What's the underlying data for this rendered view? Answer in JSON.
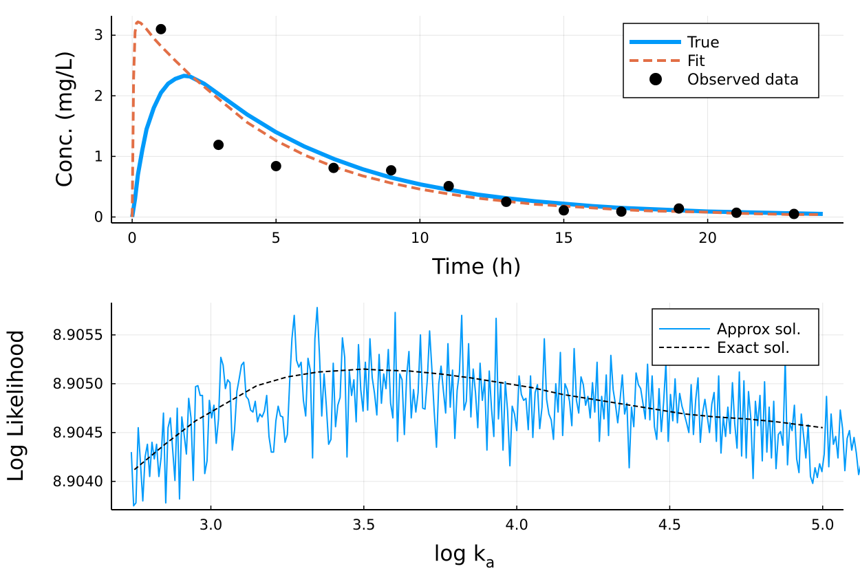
{
  "chart_data": [
    {
      "type": "line",
      "xlabel": "Time (h)",
      "ylabel": "Conc. (mg/L)",
      "xlim": [
        -0.72,
        24.72
      ],
      "ylim": [
        -0.097,
        3.32
      ],
      "xticks": [
        0,
        5,
        10,
        15,
        20
      ],
      "xtick_labels": [
        "0",
        "5",
        "10",
        "15",
        "20"
      ],
      "yticks": [
        0,
        1,
        2,
        3
      ],
      "ytick_labels": [
        "0",
        "1",
        "2",
        "3"
      ],
      "grid": true,
      "legend_position": "top-right",
      "series": [
        {
          "name": "True",
          "kind": "line",
          "style": "solid",
          "color": "#009AFA",
          "x": [
            0,
            0.1,
            0.2,
            0.35,
            0.5,
            0.75,
            1.0,
            1.25,
            1.5,
            1.8,
            2.0,
            2.5,
            3.0,
            4.0,
            5.0,
            6.0,
            7.0,
            8.0,
            9.0,
            10.0,
            11.0,
            12.0,
            13.0,
            14.0,
            15.0,
            16.0,
            17.0,
            18.0,
            19.0,
            20.0,
            21.0,
            22.0,
            23.0,
            24.0
          ],
          "y": [
            0,
            0.3,
            0.7,
            1.1,
            1.45,
            1.8,
            2.05,
            2.2,
            2.28,
            2.33,
            2.32,
            2.2,
            2.03,
            1.69,
            1.4,
            1.16,
            0.96,
            0.79,
            0.65,
            0.54,
            0.45,
            0.37,
            0.31,
            0.26,
            0.22,
            0.18,
            0.15,
            0.13,
            0.11,
            0.09,
            0.08,
            0.07,
            0.06,
            0.05
          ]
        },
        {
          "name": "Fit",
          "kind": "line",
          "style": "dashed",
          "color": "#E26F46",
          "x": [
            0,
            0.05,
            0.1,
            0.15,
            0.2,
            0.3,
            0.5,
            0.75,
            1.0,
            1.5,
            2.0,
            3.0,
            4.0,
            5.0,
            6.0,
            7.0,
            8.0,
            9.0,
            10.0,
            11.0,
            12.0,
            13.0,
            14.0,
            15.0,
            16.0,
            17.0,
            18.0,
            19.0,
            20.0,
            21.0,
            22.0,
            23.0,
            24.0
          ],
          "y": [
            0,
            2.3,
            3.05,
            3.2,
            3.22,
            3.2,
            3.1,
            2.95,
            2.82,
            2.58,
            2.35,
            1.95,
            1.56,
            1.26,
            1.02,
            0.83,
            0.68,
            0.56,
            0.46,
            0.38,
            0.31,
            0.26,
            0.21,
            0.18,
            0.15,
            0.12,
            0.1,
            0.09,
            0.08,
            0.06,
            0.05,
            0.04,
            0.04
          ]
        },
        {
          "name": "Observed data",
          "kind": "scatter",
          "color": "#000000",
          "x": [
            1,
            3,
            5,
            7,
            9,
            11,
            13,
            15,
            17,
            19,
            21,
            23
          ],
          "y": [
            3.1,
            1.19,
            0.84,
            0.81,
            0.77,
            0.51,
            0.25,
            0.11,
            0.09,
            0.14,
            0.07,
            0.05
          ]
        }
      ]
    },
    {
      "type": "line",
      "xlabel": "log k",
      "xlabel_sub": "a",
      "ylabel": "Log Likelihood",
      "xlim": [
        2.675,
        5.068
      ],
      "ylim": [
        8.90371,
        8.90583
      ],
      "xticks": [
        3.0,
        3.5,
        4.0,
        4.5,
        5.0
      ],
      "xtick_labels": [
        "3.0",
        "3.5",
        "4.0",
        "4.5",
        "5.0"
      ],
      "yticks": [
        8.904,
        8.9045,
        8.905,
        8.9055
      ],
      "ytick_labels": [
        "8.9040",
        "8.9045",
        "8.9050",
        "8.9055"
      ],
      "grid": true,
      "legend_position": "top-right",
      "series": [
        {
          "name": "Approx sol.",
          "kind": "line",
          "style": "solid",
          "color": "#009AFA",
          "x_start": 2.74,
          "x_step": 0.0075,
          "y": [
            8.9043,
            8.90375,
            8.90378,
            8.90455,
            8.90418,
            8.9038,
            8.90425,
            8.90438,
            8.90405,
            8.9044,
            8.90423,
            8.90438,
            8.90405,
            8.90425,
            8.9047,
            8.90378,
            8.90455,
            8.90465,
            8.90433,
            8.90401,
            8.90475,
            8.90382,
            8.90466,
            8.90448,
            8.90428,
            8.90485,
            8.90465,
            8.90401,
            8.90497,
            8.90498,
            8.90488,
            8.90488,
            8.90408,
            8.90421,
            8.90483,
            8.90465,
            8.90478,
            8.90439,
            8.90464,
            8.90527,
            8.90519,
            8.90495,
            8.90504,
            8.90501,
            8.90432,
            8.90453,
            8.90492,
            8.90505,
            8.90519,
            8.90522,
            8.90487,
            8.90484,
            8.90473,
            8.90471,
            8.90482,
            8.90461,
            8.90469,
            8.90466,
            8.90472,
            8.90488,
            8.90446,
            8.9043,
            8.9043,
            8.90462,
            8.90477,
            8.90467,
            8.90466,
            8.9044,
            8.90448,
            8.90501,
            8.90546,
            8.9057,
            8.90524,
            8.90517,
            8.90522,
            8.90483,
            8.90467,
            8.90526,
            8.90514,
            8.90424,
            8.90546,
            8.90578,
            8.9053,
            8.90467,
            8.9051,
            8.90477,
            8.90438,
            8.90443,
            8.90521,
            8.90456,
            8.90478,
            8.90486,
            8.90547,
            8.90527,
            8.90425,
            8.90513,
            8.90488,
            8.90504,
            8.90461,
            8.9054,
            8.90494,
            8.90472,
            8.90522,
            8.90473,
            8.90546,
            8.90506,
            8.9049,
            8.90468,
            8.9053,
            8.9048,
            8.9051,
            8.90495,
            8.90535,
            8.9048,
            8.90465,
            8.90573,
            8.90441,
            8.9051,
            8.90504,
            8.90448,
            8.90508,
            8.90533,
            8.90465,
            8.90494,
            8.90471,
            8.90491,
            8.9055,
            8.90475,
            8.90474,
            8.90504,
            8.90554,
            8.90515,
            8.90472,
            8.90435,
            8.905,
            8.90518,
            8.90493,
            8.9047,
            8.90541,
            8.90476,
            8.90514,
            8.90444,
            8.90493,
            8.90512,
            8.9057,
            8.90473,
            8.90482,
            8.90541,
            8.90466,
            8.90515,
            8.90491,
            8.90455,
            8.90521,
            8.90483,
            8.90503,
            8.90432,
            8.90513,
            8.90474,
            8.90446,
            8.90567,
            8.90464,
            8.90501,
            8.90432,
            8.90502,
            8.90472,
            8.90416,
            8.90477,
            8.90469,
            8.90452,
            8.90508,
            8.90489,
            8.90483,
            8.90485,
            8.90453,
            8.90508,
            8.90445,
            8.90491,
            8.90499,
            8.90454,
            8.90476,
            8.90546,
            8.90484,
            8.90469,
            8.90463,
            8.90443,
            8.905,
            8.90471,
            8.90532,
            8.90447,
            8.905,
            8.90494,
            8.90482,
            8.90457,
            8.90536,
            8.90483,
            8.9047,
            8.90507,
            8.90499,
            8.90478,
            8.90487,
            8.90465,
            8.90501,
            8.90471,
            8.90522,
            8.90441,
            8.90487,
            8.90464,
            8.90509,
            8.90447,
            8.90529,
            8.90494,
            8.90479,
            8.9046,
            8.90483,
            8.90509,
            8.90469,
            8.9048,
            8.90414,
            8.90476,
            8.90456,
            8.90511,
            8.90499,
            8.90495,
            8.9048,
            8.90464,
            8.9052,
            8.90463,
            8.90508,
            8.90456,
            8.90443,
            8.90495,
            8.90451,
            8.90481,
            8.90521,
            8.90441,
            8.90489,
            8.90462,
            8.90505,
            8.9046,
            8.9049,
            8.90477,
            8.90469,
            8.9046,
            8.9045,
            8.90499,
            8.90448,
            8.90484,
            8.90506,
            8.9044,
            8.9047,
            8.90484,
            8.90467,
            8.9045,
            8.90479,
            8.90491,
            8.90441,
            8.90508,
            8.90429,
            8.90466,
            8.90446,
            8.90476,
            8.90449,
            8.90501,
            8.90459,
            8.90434,
            8.90512,
            8.90426,
            8.90503,
            8.90424,
            8.90492,
            8.90465,
            8.90403,
            8.90482,
            8.90457,
            8.90488,
            8.90421,
            8.90502,
            8.9043,
            8.90476,
            8.90424,
            8.90482,
            8.90413,
            8.90448,
            8.90451,
            8.90437,
            8.90525,
            8.90417,
            8.9046,
            8.90452,
            8.90478,
            8.90423,
            8.90409,
            8.90469,
            8.90447,
            8.90424,
            8.90458,
            8.90405,
            8.90398,
            8.90414,
            8.90404,
            8.90418,
            8.9041,
            8.90428,
            8.90487,
            8.90415,
            8.90469,
            8.90438,
            8.90446,
            8.90424,
            8.90473,
            8.90454,
            8.90411,
            8.90444,
            8.90452,
            8.90432,
            8.90445,
            8.90429,
            8.90407,
            8.90418,
            8.90426,
            8.9043,
            8.9043,
            8.90425
          ]
        },
        {
          "name": "Exact sol.",
          "kind": "line",
          "style": "dashed",
          "color": "#000000",
          "x": [
            2.75,
            2.85,
            2.95,
            3.05,
            3.15,
            3.25,
            3.35,
            3.45,
            3.5,
            3.55,
            3.65,
            3.75,
            3.85,
            3.95,
            4.05,
            4.15,
            4.25,
            4.35,
            4.45,
            4.55,
            4.65,
            4.75,
            4.85,
            4.95,
            5.0
          ],
          "y": [
            8.90412,
            8.90438,
            8.90462,
            8.9048,
            8.90498,
            8.90507,
            8.90512,
            8.90514,
            8.90515,
            8.90514,
            8.90513,
            8.9051,
            8.90506,
            8.90501,
            8.90496,
            8.90489,
            8.90484,
            8.90479,
            8.90474,
            8.90469,
            8.90466,
            8.90464,
            8.90461,
            8.90457,
            8.90455
          ]
        }
      ]
    }
  ]
}
